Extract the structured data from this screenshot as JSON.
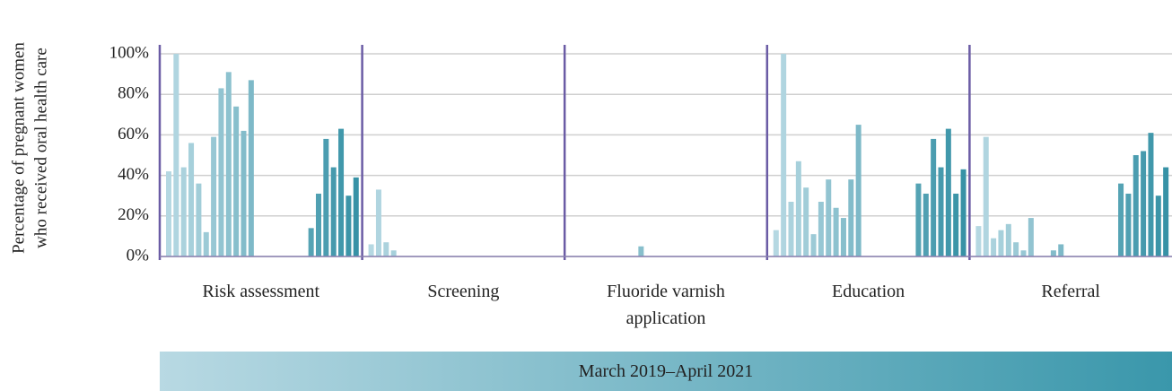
{
  "chart_data": {
    "type": "bar",
    "ylabel": [
      "Percentage of pregnant women",
      "who received oral health care"
    ],
    "xlabel": "March 2019–April 2021",
    "categories": [
      "Risk assessment",
      "Screening",
      "Fluoride varnish application",
      "Education",
      "Referral"
    ],
    "values": [
      [
        42,
        100,
        44,
        56,
        36,
        12,
        59,
        83,
        91,
        74,
        62,
        87,
        null,
        null,
        null,
        null,
        null,
        null,
        null,
        14,
        31,
        58,
        44,
        63,
        30,
        39
      ],
      [
        6,
        33,
        7,
        3,
        0,
        0,
        0,
        0,
        0,
        0,
        0,
        0,
        null,
        null,
        null,
        null,
        null,
        null,
        null,
        0,
        0,
        0,
        0,
        0,
        0,
        0
      ],
      [
        0,
        0,
        0,
        0,
        0,
        0,
        0,
        0,
        0,
        5,
        0,
        0,
        null,
        null,
        null,
        null,
        null,
        null,
        null,
        0,
        0,
        0,
        0,
        0,
        0,
        0
      ],
      [
        13,
        100,
        27,
        47,
        34,
        11,
        27,
        38,
        24,
        19,
        38,
        65,
        null,
        null,
        null,
        null,
        null,
        null,
        null,
        36,
        31,
        58,
        44,
        63,
        31,
        43
      ],
      [
        15,
        59,
        9,
        13,
        16,
        7,
        3,
        19,
        0,
        0,
        3,
        6,
        null,
        null,
        null,
        null,
        null,
        null,
        null,
        36,
        31,
        50,
        52,
        61,
        30,
        44
      ]
    ],
    "colors": [
      "#b5d8e2",
      "#b0d5e0",
      "#abd2dd",
      "#a6d0db",
      "#a1cdd8",
      "#9ccad6",
      "#97c7d4",
      "#92c4d1",
      "#8dc2cf",
      "#88bfcc",
      "#83bcca",
      "#7eb9c8",
      "#79b6c5",
      "#74b4c3",
      "#6eb1c0",
      "#69aebe",
      "#64abbc",
      "#5fa8b9",
      "#5aa6b7",
      "#55a3b4",
      "#50a0b2",
      "#4b9db0",
      "#469aad",
      "#4198ab",
      "#3c95a8",
      "#3792a6"
    ],
    "ylim": [
      0,
      100
    ],
    "yticks": [
      {
        "value": 0,
        "label": "0%"
      },
      {
        "value": 20,
        "label": "20%"
      },
      {
        "value": 40,
        "label": "40%"
      },
      {
        "value": 60,
        "label": "60%"
      },
      {
        "value": 80,
        "label": "80%"
      },
      {
        "value": 100,
        "label": "100%"
      }
    ],
    "grid": true
  }
}
